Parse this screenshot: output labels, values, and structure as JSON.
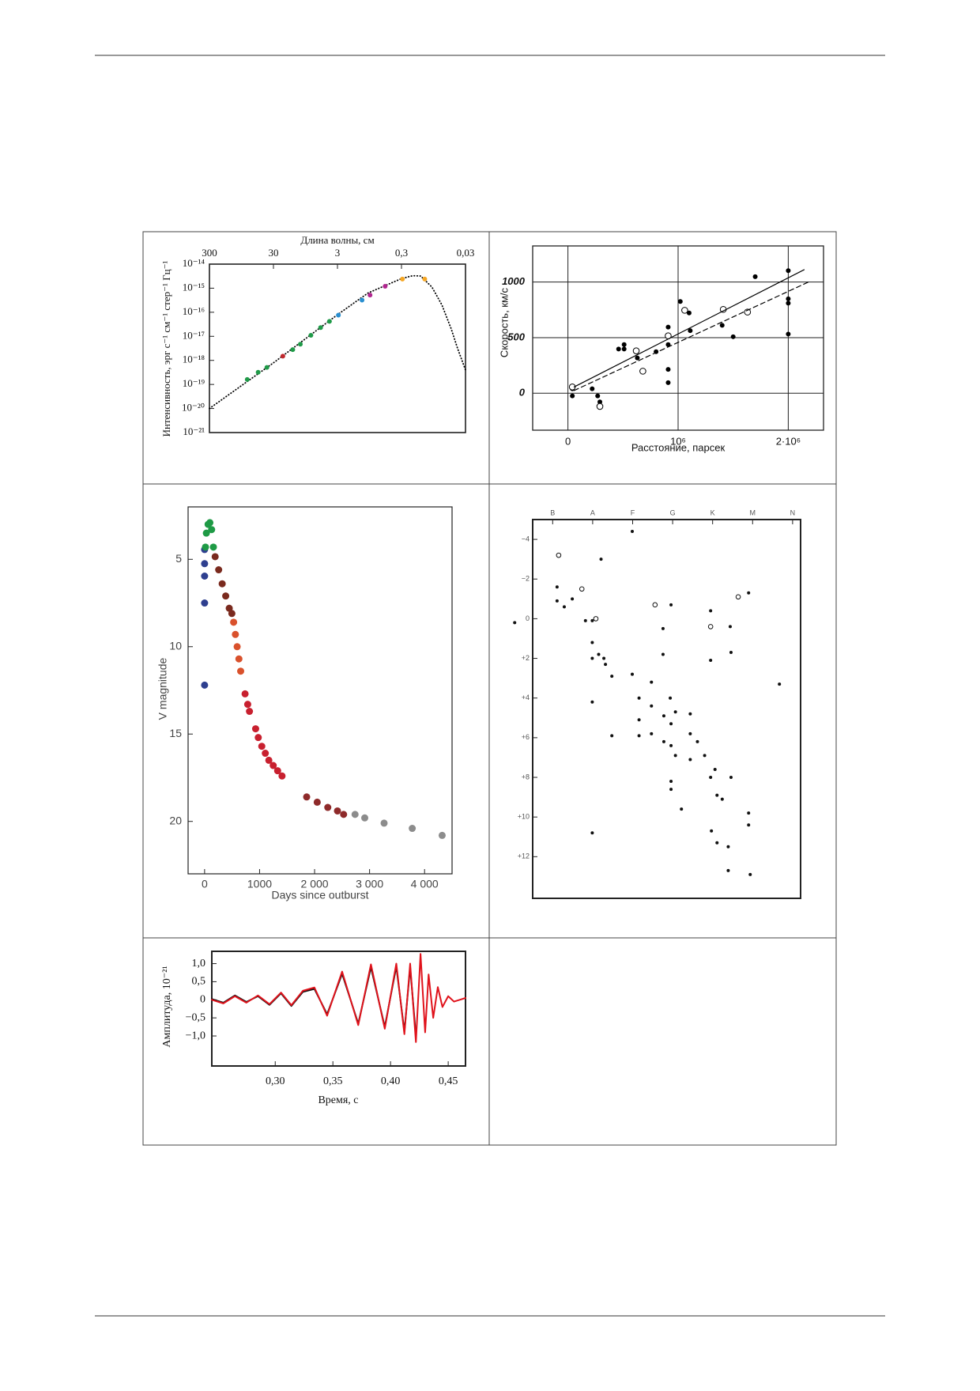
{
  "chart_data": [
    {
      "type": "scatter",
      "x_label": "Длина волны, см",
      "y_label": "Интенсивность, эрг с⁻¹ см⁻¹ стер⁻¹ Гц⁻¹",
      "x_axis_position": "top",
      "x_log": true,
      "y_log": true,
      "xlim": [
        300,
        0.03
      ],
      "ylim": [
        1e-21,
        1e-14
      ],
      "xticks": [
        300,
        30,
        3,
        {
          "value": 0.3,
          "label": "0,3"
        },
        {
          "value": 0.03,
          "label": "0,03"
        }
      ],
      "yticks": [
        {
          "value": 1e-14,
          "label": "10⁻¹⁴"
        },
        {
          "value": 1e-15,
          "label": "10⁻¹⁵"
        },
        {
          "value": 1e-16,
          "label": "10⁻¹⁶"
        },
        {
          "value": 1e-17,
          "label": "10⁻¹⁷"
        },
        {
          "value": 1e-18,
          "label": "10⁻¹⁸"
        },
        {
          "value": 1e-19,
          "label": "10⁻¹⁹"
        },
        {
          "value": 1e-20,
          "label": "10⁻²⁰"
        },
        {
          "value": 1e-21,
          "label": "10⁻²¹"
        }
      ],
      "series": [
        {
          "color": "#000000",
          "mode": "dotted",
          "x": [
            300,
            30,
            3,
            1,
            0.3,
            0.2,
            0.15,
            0.1,
            0.07,
            0.05,
            0.04,
            0.03
          ],
          "values": [
            1e-20,
            7.9e-19,
            7.9e-17,
            6.3e-16,
            2.5e-15,
            3.3e-15,
            3.2e-15,
            1.1e-15,
            2e-16,
            2e-17,
            3.2e-18,
            4e-19
          ]
        },
        {
          "color": "#1f9a48",
          "mode": "markers",
          "x": [
            77,
            52,
            38,
            15,
            11.4,
            7.8,
            5.5,
            4.0
          ],
          "values": [
            1.6e-19,
            3.2e-19,
            5.1e-19,
            2.8e-18,
            4.7e-18,
            1.1e-17,
            2.3e-17,
            4.2e-17
          ]
        },
        {
          "color": "#c0282d",
          "mode": "markers",
          "x": [
            21.4
          ],
          "values": [
            1.5e-18
          ]
        },
        {
          "color": "#2a8fd0",
          "mode": "markers",
          "x": [
            2.9,
            1.24
          ],
          "values": [
            7.6e-17,
            3.2e-16
          ]
        },
        {
          "color": "#b0268f",
          "mode": "markers",
          "x": [
            0.93,
            0.54
          ],
          "values": [
            5.2e-16,
            1.2e-15
          ]
        },
        {
          "color": "#f5a623",
          "mode": "markers",
          "x": [
            0.29,
            0.13
          ],
          "values": [
            2.4e-15,
            2.4e-15
          ]
        }
      ]
    },
    {
      "type": "scatter",
      "x_label": "Расстояние, парсек",
      "y_label": "Скорость, км/с",
      "x_axis_position": "bottom",
      "grid": true,
      "xlim": [
        -320000,
        2320000
      ],
      "ylim": [
        -333,
        1325
      ],
      "xticks": [
        0,
        {
          "value": 1000000,
          "label": "10⁶"
        },
        {
          "value": 2000000,
          "label": "2·10⁶"
        }
      ],
      "yticks": [
        0,
        500,
        1000
      ],
      "series": [
        {
          "color": "#000000",
          "mode": "markers",
          "x": [
            40000,
            40000,
            220000,
            270000,
            290000,
            460000,
            510000,
            510000,
            630000,
            800000,
            910000,
            910000,
            910000,
            910000,
            1020000,
            1100000,
            1110000,
            1400000,
            1500000,
            1700000,
            2000000,
            2000000,
            2000000,
            2000000
          ],
          "values": [
            -24,
            40,
            40,
            -24,
            -79,
            397,
            437,
            397,
            317,
            373,
            595,
            437,
            214,
            95,
            825,
            722,
            563,
            611,
            508,
            1048,
            1103,
            849,
            810,
            532
          ]
        },
        {
          "color": "#000000",
          "mode": "open",
          "x": [
            40000,
            290000,
            620000,
            680000,
            910000,
            1060000,
            1410000,
            1630000
          ],
          "values": [
            56,
            -119,
            381,
            198,
            516,
            746,
            754,
            730
          ]
        },
        {
          "color": "#000000",
          "mode": "solid",
          "x": [
            56000,
            2144000
          ],
          "values": [
            56,
            1111
          ]
        },
        {
          "color": "#000000",
          "mode": "dashed",
          "x": [
            56000,
            2200000
          ],
          "values": [
            24,
            1008
          ]
        }
      ]
    },
    {
      "type": "scatter",
      "x_label": "Days since outburst",
      "y_label": "V magnitude",
      "x_axis_position": "bottom",
      "y_inverted": true,
      "xlim": [
        -300,
        4500
      ],
      "ylim": [
        2,
        23
      ],
      "xticks": [
        0,
        1000,
        {
          "value": 2000,
          "label": "2 000"
        },
        {
          "value": 3000,
          "label": "3 000"
        },
        {
          "value": 4000,
          "label": "4 000"
        }
      ],
      "yticks": [
        5,
        10,
        15,
        20
      ],
      "series": [
        {
          "color": "#2e3f8f",
          "mode": "markers",
          "x": [
            0,
            0,
            0,
            0,
            0
          ],
          "values": [
            4.44,
            5.25,
            5.96,
            7.5,
            12.2
          ]
        },
        {
          "color": "#1e9a45",
          "mode": "markers",
          "x": [
            16,
            32,
            64,
            96,
            128,
            160
          ],
          "values": [
            4.3,
            3.5,
            3.0,
            2.9,
            3.3,
            4.3
          ]
        },
        {
          "color": "#7a2a1e",
          "mode": "markers",
          "x": [
            192,
            256,
            320,
            384,
            448,
            496
          ],
          "values": [
            4.85,
            5.6,
            6.4,
            7.1,
            7.8,
            8.1
          ]
        },
        {
          "color": "#d9512c",
          "mode": "markers",
          "x": [
            528,
            560,
            592,
            624,
            656
          ],
          "values": [
            8.6,
            9.3,
            10,
            10.7,
            11.4
          ]
        },
        {
          "color": "#c8202f",
          "mode": "markers",
          "x": [
            736,
            784,
            816,
            928,
            976,
            1040,
            1104,
            1168,
            1248,
            1328,
            1408
          ],
          "values": [
            12.7,
            13.3,
            13.7,
            14.7,
            15.2,
            15.7,
            16.1,
            16.5,
            16.8,
            17.1,
            17.4
          ]
        },
        {
          "color": "#8e2a2a",
          "mode": "markers",
          "x": [
            1856,
            2048,
            2240,
            2416,
            2528
          ],
          "values": [
            18.6,
            18.9,
            19.2,
            19.4,
            19.6
          ]
        },
        {
          "color": "#8c8c8c",
          "mode": "markers",
          "x": [
            2736,
            2912,
            3264,
            3776,
            4320
          ],
          "values": [
            19.6,
            19.8,
            20.1,
            20.4,
            20.8
          ]
        }
      ]
    },
    {
      "type": "scatter",
      "x_axis_position": "top",
      "y_inverted": true,
      "xlim": [
        -0.5,
        6.2
      ],
      "ylim": [
        -5,
        14.1
      ],
      "xticks": [
        {
          "value": 0,
          "label": "B"
        },
        {
          "value": 1,
          "label": "A"
        },
        {
          "value": 2,
          "label": "F"
        },
        {
          "value": 3,
          "label": "G"
        },
        {
          "value": 4,
          "label": "K"
        },
        {
          "value": 5,
          "label": "M"
        },
        {
          "value": 6,
          "label": "N"
        }
      ],
      "yticks": [
        {
          "value": -4,
          "label": "−4"
        },
        {
          "value": -2,
          "label": "−2"
        },
        0,
        {
          "value": 2,
          "label": "+2"
        },
        {
          "value": 4,
          "label": "+4"
        },
        {
          "value": 6,
          "label": "+6"
        },
        {
          "value": 8,
          "label": "+8"
        },
        {
          "value": 10,
          "label": "+10"
        },
        {
          "value": 12,
          "label": "+12"
        }
      ],
      "series": [
        {
          "color": "#111111",
          "mode": "markers",
          "x": [
            0.11,
            0.11,
            0.49,
            0.29,
            0.82,
            0.99,
            0.99,
            0.99,
            0.99,
            0.99,
            1.15,
            1.28,
            1.32,
            1.48,
            1.48,
            1.99,
            2.16,
            2.16,
            2.16,
            2.47,
            2.47,
            2.47,
            2.76,
            2.76,
            2.78,
            2.78,
            2.94,
            2.96,
            2.96,
            2.96,
            2.96,
            2.96,
            3.07,
            3.07,
            3.22,
            3.44,
            3.44,
            3.44,
            3.62,
            3.8,
            3.95,
            3.95,
            3.95,
            3.97,
            4.06,
            4.11,
            4.11,
            4.24,
            4.39,
            4.39,
            4.44,
            4.46,
            4.46,
            4.9,
            4.9,
            4.9,
            4.94,
            5.67,
            1.99,
            -0.95,
            1.21
          ],
          "values": [
            -1.6,
            -0.9,
            -1.0,
            -0.6,
            0.1,
            0.1,
            1.2,
            2.0,
            4.2,
            10.8,
            1.8,
            2.0,
            2.3,
            2.9,
            5.9,
            2.8,
            4.0,
            5.1,
            5.9,
            3.2,
            4.4,
            5.8,
            0.5,
            1.8,
            4.9,
            6.2,
            4.0,
            5.3,
            6.4,
            -0.7,
            8.2,
            8.6,
            4.7,
            6.9,
            9.6,
            4.8,
            5.8,
            7.1,
            6.2,
            6.9,
            -0.4,
            2.1,
            8.0,
            10.7,
            7.6,
            8.9,
            11.3,
            9.1,
            11.5,
            12.7,
            0.4,
            1.7,
            8.0,
            -1.3,
            9.8,
            10.4,
            12.9,
            3.3,
            -4.4,
            0.2,
            -3.0
          ]
        },
        {
          "color": "#111111",
          "mode": "open",
          "x": [
            0.15,
            0.73,
            1.08,
            2.56,
            3.95,
            4.64
          ],
          "values": [
            -3.2,
            -1.5,
            0,
            -0.7,
            0.4,
            -1.1
          ]
        }
      ]
    },
    {
      "type": "line",
      "x_label": "Время, с",
      "y_label": "Амплитуда, 10⁻²¹",
      "x_axis_position": "bottom",
      "xlim": [
        0.245,
        0.465
      ],
      "ylim": [
        -1.83,
        1.34
      ],
      "xticks": [
        {
          "value": 0.3,
          "label": "0,30"
        },
        {
          "value": 0.35,
          "label": "0,35"
        },
        {
          "value": 0.4,
          "label": "0,40"
        },
        {
          "value": 0.45,
          "label": "0,45"
        }
      ],
      "yticks": [
        {
          "value": 1,
          "label": "1,0"
        },
        {
          "value": 0.5,
          "label": "0,5"
        },
        0,
        {
          "value": -0.5,
          "label": "−0,5"
        },
        {
          "value": -1,
          "label": "−1,0"
        }
      ],
      "series": [
        {
          "color": "#111111",
          "mode": "solid",
          "x": [
            0.245,
            0.255,
            0.265,
            0.275,
            0.285,
            0.295,
            0.305,
            0.314,
            0.324,
            0.334,
            0.345,
            0.358,
            0.372,
            0.383,
            0.395,
            0.405,
            0.412,
            0.417,
            0.422
          ],
          "values": [
            0.02,
            -0.08,
            0.12,
            -0.06,
            0.1,
            -0.14,
            0.18,
            -0.17,
            0.22,
            0.3,
            -0.4,
            0.72,
            -0.66,
            0.9,
            -0.75,
            0.92,
            -0.88,
            0.9,
            -1.0
          ]
        },
        {
          "color": "#e0121b",
          "mode": "solid",
          "x": [
            0.245,
            0.255,
            0.265,
            0.275,
            0.285,
            0.295,
            0.305,
            0.314,
            0.324,
            0.334,
            0.345,
            0.358,
            0.372,
            0.383,
            0.395,
            0.405,
            0.412,
            0.417,
            0.422,
            0.426,
            0.43,
            0.433,
            0.437,
            0.441,
            0.445,
            0.45,
            0.455,
            0.46,
            0.465
          ],
          "values": [
            0,
            -0.1,
            0.1,
            -0.08,
            0.12,
            -0.12,
            0.2,
            -0.15,
            0.25,
            0.34,
            -0.44,
            0.78,
            -0.7,
            0.98,
            -0.8,
            1.0,
            -0.95,
            1.0,
            -1.17,
            1.27,
            -0.9,
            0.7,
            -0.5,
            0.35,
            -0.2,
            0.1,
            -0.05,
            0,
            0.05
          ]
        }
      ]
    }
  ]
}
